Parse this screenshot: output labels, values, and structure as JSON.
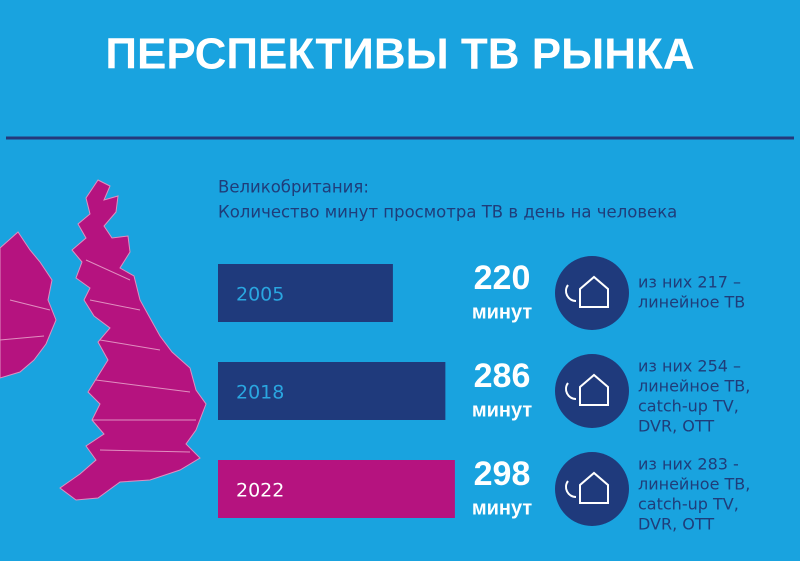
{
  "chart_data": {
    "type": "bar",
    "orientation": "horizontal",
    "title": "ПЕРСПЕКТИВЫ ТВ РЫНКА",
    "subtitle": [
      "Великобритания:",
      "Количество минут просмотра ТВ в день на человека"
    ],
    "categories": [
      "2005",
      "2018",
      "2022"
    ],
    "values": [
      220,
      286,
      298
    ],
    "unit": "минут",
    "colors": [
      "#1f3a7c",
      "#1f3a7c",
      "#b5137f"
    ],
    "notes": [
      [
        "из них 217 –",
        "линейное ТВ"
      ],
      [
        "из них 254 –",
        "линейное ТВ,",
        "catch-up TV,",
        "DVR, OTT"
      ],
      [
        "из них 283 -",
        "линейное ТВ,",
        "catch-up TV,",
        "DVR, OTT"
      ]
    ]
  }
}
